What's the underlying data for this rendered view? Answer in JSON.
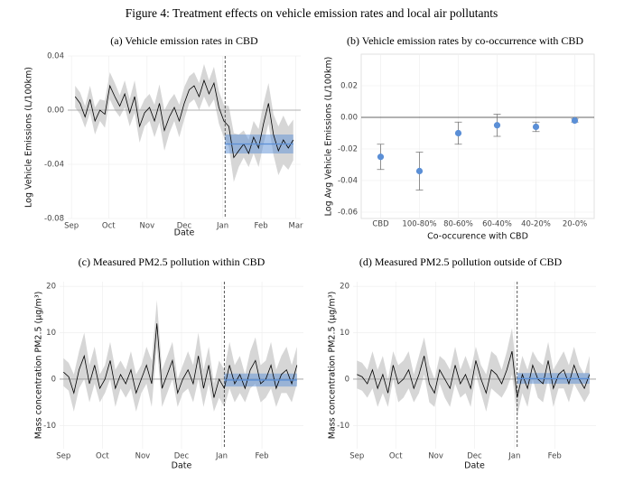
{
  "title": "Figure 4: Treatment effects on vehicle emission rates and local air pollutants",
  "chart_data": [
    {
      "type": "line",
      "title": "(a) Vehicle emission rates in CBD",
      "x_label": "Date",
      "y_label": "Log Vehicle Emissions (L/100km)",
      "xlim": [
        -3,
        185
      ],
      "xticks": [
        {
          "value": 0,
          "label": "Sep"
        },
        {
          "value": 30,
          "label": "Oct"
        },
        {
          "value": 61,
          "label": "Nov"
        },
        {
          "value": 91,
          "label": "Dec"
        },
        {
          "value": 122,
          "label": "Jan"
        },
        {
          "value": 153,
          "label": "Feb"
        },
        {
          "value": 181,
          "label": "Mar"
        }
      ],
      "ylim": [
        -0.08,
        0.04
      ],
      "yticks": [
        0.04,
        {
          "value": 0,
          "label": "0.00"
        },
        -0.04,
        -0.08
      ],
      "grid": true,
      "hline": 0,
      "vline": 124,
      "x": [
        3,
        7,
        11,
        15,
        19,
        23,
        27,
        31,
        35,
        39,
        43,
        47,
        51,
        55,
        59,
        63,
        67,
        71,
        75,
        79,
        83,
        87,
        91,
        95,
        99,
        103,
        107,
        111,
        115,
        119,
        123,
        127,
        131,
        135,
        139,
        143,
        147,
        151,
        155,
        159,
        163,
        167,
        171,
        175,
        179
      ],
      "series": [
        {
          "color": "#000000",
          "band_color": "#d6d6d6",
          "values": [
            0.01,
            0.005,
            -0.005,
            0.008,
            -0.008,
            0.0,
            -0.003,
            0.018,
            0.01,
            0.003,
            0.012,
            -0.002,
            0.01,
            -0.012,
            -0.002,
            0.002,
            -0.008,
            0.005,
            -0.015,
            -0.005,
            0.002,
            -0.008,
            0.005,
            0.015,
            0.018,
            0.01,
            0.022,
            0.012,
            0.02,
            0.002,
            -0.008,
            -0.012,
            -0.035,
            -0.03,
            -0.025,
            -0.032,
            -0.02,
            -0.028,
            -0.01,
            0.005,
            -0.018,
            -0.03,
            -0.022,
            -0.028,
            -0.022
          ],
          "band": [
            0.008,
            0.008,
            0.008,
            0.01,
            0.01,
            0.008,
            0.01,
            0.01,
            0.01,
            0.008,
            0.01,
            0.01,
            0.012,
            0.012,
            0.01,
            0.01,
            0.012,
            0.014,
            0.015,
            0.012,
            0.01,
            0.012,
            0.012,
            0.01,
            0.01,
            0.01,
            0.012,
            0.01,
            0.012,
            0.012,
            0.012,
            0.015,
            0.018,
            0.012,
            0.01,
            0.01,
            0.012,
            0.014,
            0.015,
            0.015,
            0.015,
            0.018,
            0.018,
            0.016,
            0.015
          ]
        }
      ],
      "effect": {
        "x": [
          124,
          179
        ],
        "value": -0.025,
        "lower": -0.032,
        "upper": -0.018,
        "color": "#5b8fd6"
      }
    },
    {
      "type": "scatter",
      "title": "(b) Vehicle emission rates by co-occurrence with CBD",
      "x_label": "Co-occurence with CBD",
      "y_label": "Log Avg Vehicle Emissions (L/100km)",
      "categories": [
        "CBD",
        "100-80%",
        "80-60%",
        "60-40%",
        "40-20%",
        "20-0%"
      ],
      "values": [
        -0.025,
        -0.034,
        -0.01,
        -0.005,
        -0.006,
        -0.002
      ],
      "errors": [
        0.008,
        0.012,
        0.007,
        0.007,
        0.003,
        0.001
      ],
      "color": "#5b8fd6",
      "ylim": [
        -0.064,
        0.04
      ],
      "yticks": [
        0.02,
        {
          "value": 0,
          "label": "0.00"
        },
        -0.02,
        -0.04,
        -0.06
      ],
      "grid": true,
      "hline": 0
    },
    {
      "type": "line",
      "title": "(c) Measured PM2.5 pollution within CBD",
      "x_label": "Date",
      "y_label": "Mass concentration PM2.5 (µg/m³)",
      "xlim": [
        -3,
        185
      ],
      "xticks": [
        {
          "value": 0,
          "label": "Sep"
        },
        {
          "value": 30,
          "label": "Oct"
        },
        {
          "value": 61,
          "label": "Nov"
        },
        {
          "value": 91,
          "label": "Dec"
        },
        {
          "value": 122,
          "label": "Jan"
        },
        {
          "value": 153,
          "label": "Feb"
        }
      ],
      "ylim": [
        -15,
        21
      ],
      "yticks": [
        -10,
        0,
        10,
        20
      ],
      "grid": true,
      "hline": 0,
      "vline": 124,
      "x": [
        0,
        4,
        8,
        12,
        16,
        20,
        24,
        28,
        32,
        36,
        40,
        44,
        48,
        52,
        56,
        60,
        64,
        68,
        72,
        76,
        80,
        84,
        88,
        92,
        96,
        100,
        104,
        108,
        112,
        116,
        120,
        124,
        128,
        132,
        136,
        140,
        144,
        148,
        152,
        156,
        160,
        164,
        168,
        172,
        176,
        180
      ],
      "series": [
        {
          "color": "#000000",
          "band_color": "#d6d6d6",
          "values": [
            1.5,
            0.5,
            -3,
            2,
            5,
            -1,
            3,
            -2,
            0,
            4,
            -2,
            1,
            -1,
            2,
            -3,
            0,
            3,
            -1,
            12,
            -2,
            1,
            4,
            -3,
            0,
            2,
            -1,
            5,
            -2,
            3,
            -4,
            0,
            -2,
            3,
            -1,
            1,
            -2,
            2,
            4,
            -1,
            0,
            3,
            -2,
            1,
            2,
            -1,
            3
          ],
          "band": [
            3,
            3,
            4,
            4,
            5,
            4,
            4,
            3,
            3,
            4,
            4,
            3,
            3,
            4,
            4,
            3,
            4,
            5,
            5,
            4,
            4,
            4,
            3,
            3,
            4,
            4,
            5,
            4,
            4,
            3,
            4,
            4,
            5,
            4,
            4,
            3,
            4,
            5,
            4,
            4,
            5,
            4,
            4,
            5,
            4,
            4
          ]
        }
      ],
      "effect": {
        "x": [
          124,
          180
        ],
        "value": -0.2,
        "lower": -1.6,
        "upper": 1.2,
        "color": "#5b8fd6"
      }
    },
    {
      "type": "line",
      "title": "(d) Measured PM2.5 pollution outside of CBD",
      "x_label": "Date",
      "y_label": "Mass concentration PM2.5 (µg/m³)",
      "xlim": [
        -3,
        185
      ],
      "xticks": [
        {
          "value": 0,
          "label": "Sep"
        },
        {
          "value": 30,
          "label": "Oct"
        },
        {
          "value": 61,
          "label": "Nov"
        },
        {
          "value": 91,
          "label": "Dec"
        },
        {
          "value": 122,
          "label": "Jan"
        },
        {
          "value": 153,
          "label": "Feb"
        }
      ],
      "ylim": [
        -15,
        21
      ],
      "yticks": [
        -10,
        0,
        10,
        20
      ],
      "grid": true,
      "hline": 0,
      "vline": 124,
      "x": [
        0,
        4,
        8,
        12,
        16,
        20,
        24,
        28,
        32,
        36,
        40,
        44,
        48,
        52,
        56,
        60,
        64,
        68,
        72,
        76,
        80,
        84,
        88,
        92,
        96,
        100,
        104,
        108,
        112,
        116,
        120,
        124,
        128,
        132,
        136,
        140,
        144,
        148,
        152,
        156,
        160,
        164,
        168,
        172,
        176,
        180
      ],
      "series": [
        {
          "color": "#000000",
          "band_color": "#d6d6d6",
          "values": [
            1,
            0.5,
            -1,
            2,
            -2,
            1,
            -3,
            3,
            -1,
            0,
            2,
            -2,
            1,
            5,
            -1,
            -3,
            2,
            0,
            -2,
            3,
            -1,
            1,
            -2,
            4,
            0,
            -3,
            2,
            1,
            -1,
            2,
            6,
            -4,
            1,
            -2,
            3,
            0,
            -1,
            4,
            -2,
            1,
            2,
            -1,
            3,
            0,
            -2,
            1
          ],
          "band": [
            3,
            3,
            3,
            4,
            4,
            4,
            3,
            3,
            4,
            4,
            4,
            3,
            4,
            4,
            4,
            3,
            3,
            4,
            4,
            4,
            3,
            4,
            4,
            3,
            3,
            4,
            4,
            4,
            3,
            4,
            5,
            4,
            4,
            4,
            3,
            4,
            4,
            4,
            4,
            3,
            4,
            4,
            4,
            3,
            3,
            4
          ]
        }
      ],
      "effect": {
        "x": [
          124,
          180
        ],
        "value": 0.1,
        "lower": -1.0,
        "upper": 1.3,
        "color": "#5b8fd6"
      }
    }
  ]
}
